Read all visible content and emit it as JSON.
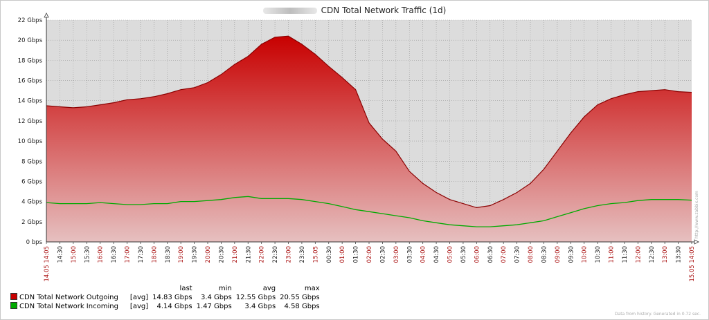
{
  "title": "CDN Total Network Traffic (1d)",
  "footer": "Data from history. Generated in 0.72 sec.",
  "watermark": "http://www.zabbix.com",
  "legend_headers": [
    "last",
    "min",
    "avg",
    "max"
  ],
  "legend": [
    {
      "name": "CDN Total Network Outgoing",
      "func": "[avg]",
      "last": "14.83 Gbps",
      "min": "3.4 Gbps",
      "avg": "12.55 Gbps",
      "max": "20.55 Gbps",
      "color": "#c80000"
    },
    {
      "name": "CDN Total Network Incoming",
      "func": "[avg]",
      "last": "4.14 Gbps",
      "min": "1.47 Gbps",
      "avg": "3.4 Gbps",
      "max": "4.58 Gbps",
      "color": "#00aa00"
    }
  ],
  "chart_data": {
    "type": "area",
    "ylim": [
      0,
      22
    ],
    "y_ticks": [
      "0 bps",
      "2 Gbps",
      "4 Gbps",
      "6 Gbps",
      "8 Gbps",
      "10 Gbps",
      "12 Gbps",
      "14 Gbps",
      "16 Gbps",
      "18 Gbps",
      "20 Gbps",
      "22 Gbps"
    ],
    "x_labels": [
      "14.05 14:05",
      "14:30",
      "15:00",
      "15:30",
      "16:00",
      "16:30",
      "17:00",
      "17:30",
      "18:00",
      "18:30",
      "19:00",
      "19:30",
      "20:00",
      "20:30",
      "21:00",
      "21:30",
      "22:00",
      "22:30",
      "23:00",
      "23:30",
      "15.05",
      "00:30",
      "01:00",
      "01:30",
      "02:00",
      "02:30",
      "03:00",
      "03:30",
      "04:00",
      "04:30",
      "05:00",
      "05:30",
      "06:00",
      "06:30",
      "07:00",
      "07:30",
      "08:00",
      "08:30",
      "09:00",
      "09:30",
      "10:00",
      "10:30",
      "11:00",
      "11:30",
      "12:00",
      "12:30",
      "13:00",
      "13:30",
      "15.05 14:05"
    ],
    "x_label_red": [
      true,
      false,
      true,
      false,
      true,
      false,
      true,
      false,
      true,
      false,
      true,
      false,
      true,
      false,
      true,
      false,
      true,
      false,
      true,
      false,
      true,
      false,
      true,
      false,
      true,
      false,
      true,
      false,
      true,
      false,
      true,
      false,
      true,
      false,
      true,
      false,
      true,
      false,
      true,
      false,
      true,
      false,
      true,
      false,
      true,
      false,
      true,
      false,
      true
    ],
    "grid": true,
    "series": [
      {
        "name": "CDN Total Network Outgoing",
        "color": "#c80000",
        "hours": [
          0,
          0.5,
          1,
          1.5,
          2,
          2.5,
          3,
          3.5,
          4,
          4.5,
          5,
          5.5,
          6,
          6.5,
          7,
          7.5,
          8,
          8.5,
          9,
          9.5,
          10,
          10.5,
          11,
          11.5,
          12,
          12.5,
          13,
          13.5,
          14,
          14.5,
          15,
          15.5,
          16,
          16.5,
          17,
          17.5,
          18,
          18.5,
          19,
          19.5,
          20,
          20.5,
          21,
          21.5,
          22,
          22.5,
          23,
          23.5,
          24
        ],
        "values": [
          13.5,
          13.4,
          13.3,
          13.4,
          13.6,
          13.8,
          14.1,
          14.2,
          14.4,
          14.7,
          15.1,
          15.3,
          15.8,
          16.6,
          17.6,
          18.4,
          19.6,
          20.3,
          20.4,
          19.6,
          18.6,
          17.4,
          16.3,
          15.1,
          11.8,
          10.2,
          9.0,
          7.0,
          5.8,
          4.9,
          4.2,
          3.8,
          3.4,
          3.6,
          4.2,
          4.9,
          5.8,
          7.2,
          9.0,
          10.8,
          12.4,
          13.6,
          14.2,
          14.6,
          14.9,
          15.0,
          15.1,
          14.9,
          14.83
        ]
      },
      {
        "name": "CDN Total Network Incoming",
        "color": "#00aa00",
        "hours": [
          0,
          0.5,
          1,
          1.5,
          2,
          2.5,
          3,
          3.5,
          4,
          4.5,
          5,
          5.5,
          6,
          6.5,
          7,
          7.5,
          8,
          8.5,
          9,
          9.5,
          10,
          10.5,
          11,
          11.5,
          12,
          12.5,
          13,
          13.5,
          14,
          14.5,
          15,
          15.5,
          16,
          16.5,
          17,
          17.5,
          18,
          18.5,
          19,
          19.5,
          20,
          20.5,
          21,
          21.5,
          22,
          22.5,
          23,
          23.5,
          24
        ],
        "values": [
          3.9,
          3.8,
          3.8,
          3.8,
          3.9,
          3.8,
          3.7,
          3.7,
          3.8,
          3.8,
          4.0,
          4.0,
          4.1,
          4.2,
          4.4,
          4.5,
          4.3,
          4.3,
          4.3,
          4.2,
          4.0,
          3.8,
          3.5,
          3.2,
          3.0,
          2.8,
          2.6,
          2.4,
          2.1,
          1.9,
          1.7,
          1.6,
          1.5,
          1.5,
          1.6,
          1.7,
          1.9,
          2.1,
          2.5,
          2.9,
          3.3,
          3.6,
          3.8,
          3.9,
          4.1,
          4.2,
          4.2,
          4.2,
          4.14
        ]
      }
    ]
  }
}
